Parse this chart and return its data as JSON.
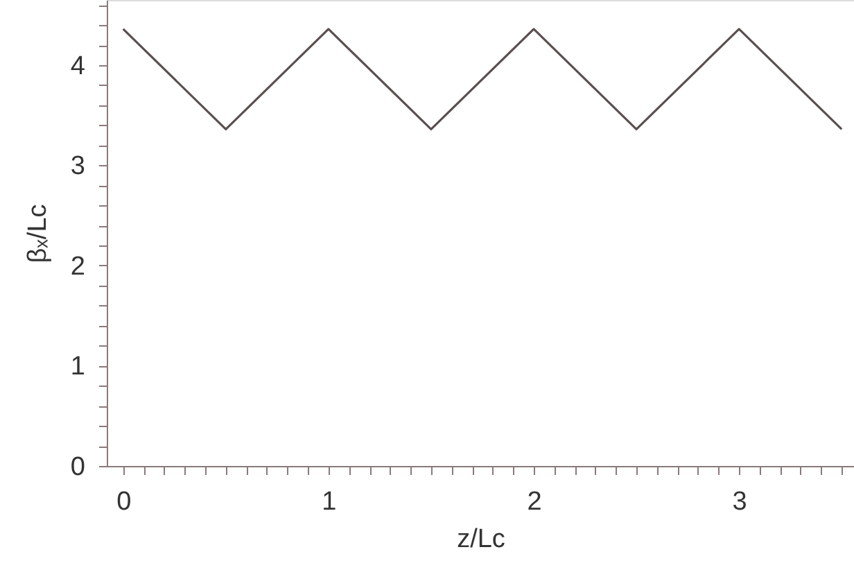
{
  "chart_data": {
    "type": "line",
    "xlabel": "z/Lc",
    "ylabel": "βₓ/Lc",
    "x": [
      0,
      0.5,
      1,
      1.5,
      2,
      2.5,
      3,
      3.5
    ],
    "series": [
      {
        "color": "#5a4f4f",
        "values": [
          4.36,
          3.36,
          4.36,
          3.36,
          4.36,
          3.36,
          4.36,
          3.36
        ]
      }
    ],
    "line_style": "solid",
    "xlim": [
      -0.08,
      3.56
    ],
    "ylim": [
      0,
      4.65
    ],
    "xticks": [
      0,
      {
        "value": 0.1,
        "label": null
      },
      {
        "value": 0.2,
        "label": null
      },
      {
        "value": 0.3,
        "label": null
      },
      {
        "value": 0.4,
        "label": null
      },
      {
        "value": 0.5,
        "label": null
      },
      {
        "value": 0.6,
        "label": null
      },
      {
        "value": 0.7,
        "label": null
      },
      {
        "value": 0.8,
        "label": null
      },
      {
        "value": 0.9,
        "label": null
      },
      1,
      {
        "value": 1.1,
        "label": null
      },
      {
        "value": 1.2,
        "label": null
      },
      {
        "value": 1.3,
        "label": null
      },
      {
        "value": 1.4,
        "label": null
      },
      {
        "value": 1.5,
        "label": null
      },
      {
        "value": 1.6,
        "label": null
      },
      {
        "value": 1.7,
        "label": null
      },
      {
        "value": 1.8,
        "label": null
      },
      {
        "value": 1.9,
        "label": null
      },
      2,
      {
        "value": 2.1,
        "label": null
      },
      {
        "value": 2.2,
        "label": null
      },
      {
        "value": 2.3,
        "label": null
      },
      {
        "value": 2.4,
        "label": null
      },
      {
        "value": 2.5,
        "label": null
      },
      {
        "value": 2.6,
        "label": null
      },
      {
        "value": 2.7,
        "label": null
      },
      {
        "value": 2.8,
        "label": null
      },
      {
        "value": 2.9,
        "label": null
      },
      3,
      {
        "value": 3.1,
        "label": null
      },
      {
        "value": 3.2,
        "label": null
      },
      {
        "value": 3.3,
        "label": null
      },
      {
        "value": 3.4,
        "label": null
      },
      {
        "value": 3.5,
        "label": null
      }
    ],
    "yticks": [
      0,
      {
        "value": 0.2,
        "label": null
      },
      {
        "value": 0.4,
        "label": null
      },
      {
        "value": 0.6,
        "label": null
      },
      {
        "value": 0.8,
        "label": null
      },
      1,
      {
        "value": 1.2,
        "label": null
      },
      {
        "value": 1.4,
        "label": null
      },
      {
        "value": 1.6,
        "label": null
      },
      {
        "value": 1.8,
        "label": null
      },
      2,
      {
        "value": 2.2,
        "label": null
      },
      {
        "value": 2.4,
        "label": null
      },
      {
        "value": 2.6,
        "label": null
      },
      {
        "value": 2.8,
        "label": null
      },
      3,
      {
        "value": 3.2,
        "label": null
      },
      {
        "value": 3.4,
        "label": null
      },
      {
        "value": 3.6,
        "label": null
      },
      {
        "value": 3.8,
        "label": null
      },
      4,
      {
        "value": 4.2,
        "label": null
      },
      {
        "value": 4.4,
        "label": null
      },
      {
        "value": 4.6,
        "label": null
      }
    ]
  }
}
